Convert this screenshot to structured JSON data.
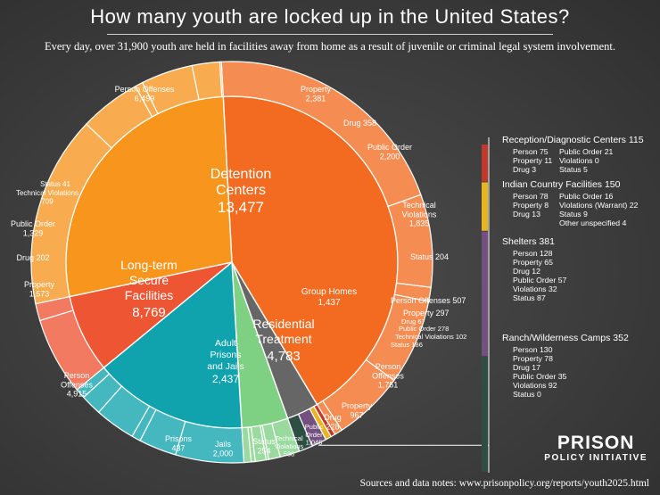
{
  "title": "How many youth are locked up in the United States?",
  "subtitle": "Every day, over 31,900 youth are held in facilities away from home as a result of juvenile or criminal legal system involvement.",
  "footer": "Sources and data notes: www.prisonpolicy.org/reports/youth2025.html",
  "logo": {
    "line1": "PRISON",
    "line2": "POLICY INITIATIVE"
  },
  "chart_data": {
    "type": "pie",
    "title": "How many youth are locked up in the United States?",
    "total": 31900,
    "inner": [
      {
        "id": "detention",
        "label_lines": [
          "Detention",
          "Centers"
        ],
        "value_label": "13,477",
        "value": 13477,
        "color": "#f26b21",
        "outer": [
          {
            "name": "Person Offenses",
            "value": 6499,
            "label_lines": [
              "Person Offenses",
              "6,499"
            ]
          },
          {
            "name": "Property",
            "value": 2381,
            "label_lines": [
              "Property",
              "2,381"
            ]
          },
          {
            "name": "Drug",
            "value": 358,
            "label_lines": [
              "Drug 358"
            ]
          },
          {
            "name": "Public Order",
            "value": 2200,
            "label_lines": [
              "Public Order",
              "2,200"
            ]
          },
          {
            "name": "Technical Violations",
            "value": 1835,
            "label_lines": [
              "Technical",
              "Violations",
              "1,835"
            ]
          },
          {
            "name": "Status",
            "value": 204,
            "label_lines": [
              "Status 204"
            ]
          }
        ]
      },
      {
        "id": "misc",
        "value": 998,
        "color": "#666666",
        "outer": [
          {
            "name": "Reception/Diagnostic Centers",
            "value": 115,
            "color": "#c0392b"
          },
          {
            "name": "Indian Country Facilities",
            "value": 150,
            "color": "#e8b422"
          },
          {
            "name": "Shelters",
            "value": 381,
            "color": "#73507f"
          },
          {
            "name": "Ranch/Wilderness Camps",
            "value": 352,
            "color": "#2e4e44"
          }
        ]
      },
      {
        "id": "group",
        "label_lines": [
          "Group Homes",
          "1,437"
        ],
        "value": 1437,
        "color": "#7ed082",
        "outer": [
          {
            "name": "Person Offenses",
            "value": 507,
            "label_lines": [
              "Person Offenses 507"
            ]
          },
          {
            "name": "Property",
            "value": 297,
            "label_lines": [
              "Property 297"
            ]
          },
          {
            "name": "Drug",
            "value": 67,
            "label_lines": [
              "Drug 67"
            ]
          },
          {
            "name": "Public Order",
            "value": 278,
            "label_lines": [
              "Public Order 278"
            ]
          },
          {
            "name": "Technical Violations",
            "value": 102,
            "label_lines": [
              "Technical Violations 102"
            ]
          },
          {
            "name": "Status",
            "value": 186,
            "label_lines": [
              "Status 186"
            ]
          }
        ]
      },
      {
        "id": "residential",
        "label_lines": [
          "Residential",
          "Treatment"
        ],
        "value_label": "4,783",
        "value": 4783,
        "color": "#10a3ad",
        "outer": [
          {
            "name": "Person Offenses",
            "value": 1751,
            "label_lines": [
              "Person",
              "Offenses",
              "1,751"
            ]
          },
          {
            "name": "Property",
            "value": 967,
            "label_lines": [
              "Property",
              "967"
            ]
          },
          {
            "name": "Drug",
            "value": 228,
            "label_lines": [
              "Drug",
              "228"
            ]
          },
          {
            "name": "Public Order",
            "value": 1045,
            "label_lines": [
              "Public",
              "Order",
              "1,045"
            ]
          },
          {
            "name": "Technical Violations",
            "value": 538,
            "label_lines": [
              "Technical",
              "Violations",
              "538"
            ]
          },
          {
            "name": "Status",
            "value": 254,
            "label_lines": [
              "Status",
              "254"
            ]
          }
        ]
      },
      {
        "id": "adult",
        "label_lines": [
          "Adult",
          "Prisons",
          "and Jails"
        ],
        "value_label": "2,437",
        "value": 2437,
        "color": "#ee5533",
        "outer": [
          {
            "name": "Jails",
            "value": 2000,
            "label_lines": [
              "Jails",
              "2,000"
            ]
          },
          {
            "name": "Prisons",
            "value": 437,
            "label_lines": [
              "Prisons",
              "437"
            ]
          }
        ]
      },
      {
        "id": "longterm",
        "label_lines": [
          "Long-term",
          "Secure",
          "Facilities"
        ],
        "value_label": "8,769",
        "value": 8769,
        "color": "#f7951d",
        "outer": [
          {
            "name": "Person Offenses",
            "value": 4915,
            "label_lines": [
              "Person",
              "Offenses",
              "4,915"
            ]
          },
          {
            "name": "Property",
            "value": 1573,
            "label_lines": [
              "Property",
              "1,573"
            ]
          },
          {
            "name": "Drug",
            "value": 202,
            "label_lines": [
              "Drug 202"
            ]
          },
          {
            "name": "Public Order",
            "value": 1329,
            "label_lines": [
              "Public Order",
              "1,329"
            ]
          },
          {
            "name": "Technical Violations",
            "value": 709,
            "label_lines": [
              "Technical Violations",
              "709"
            ]
          },
          {
            "name": "Status",
            "value": 41,
            "label_lines": [
              "Status 41"
            ]
          }
        ]
      }
    ],
    "right_panel": [
      {
        "title": "Reception/Diagnostic Centers 115",
        "color": "#c0392b",
        "col1": [
          "Person 75",
          "Property 11",
          "Drug 3"
        ],
        "col2": [
          "Public Order 21",
          "Violations 0",
          "Status 5"
        ]
      },
      {
        "title": "Indian Country Facilities 150",
        "color": "#e8b422",
        "col1": [
          "Person 78",
          "Property 8",
          "Drug 13"
        ],
        "col2": [
          "Public Order 16",
          "Violations (Warrant) 22",
          "Status 9",
          "Other unspecified 4"
        ]
      },
      {
        "title": "Shelters 381",
        "color": "#73507f",
        "col1": [
          "Person 128",
          "Property 65",
          "Drug 12",
          "Public Order 57",
          "Violations 32",
          "Status 87"
        ],
        "col2": []
      },
      {
        "title": "Ranch/Wilderness Camps 352",
        "color": "#2e4e44",
        "col1": [
          "Person 130",
          "Property 78",
          "Drug 17",
          "Public Order 35",
          "Violations 92",
          "Status 0"
        ],
        "col2": []
      }
    ]
  }
}
